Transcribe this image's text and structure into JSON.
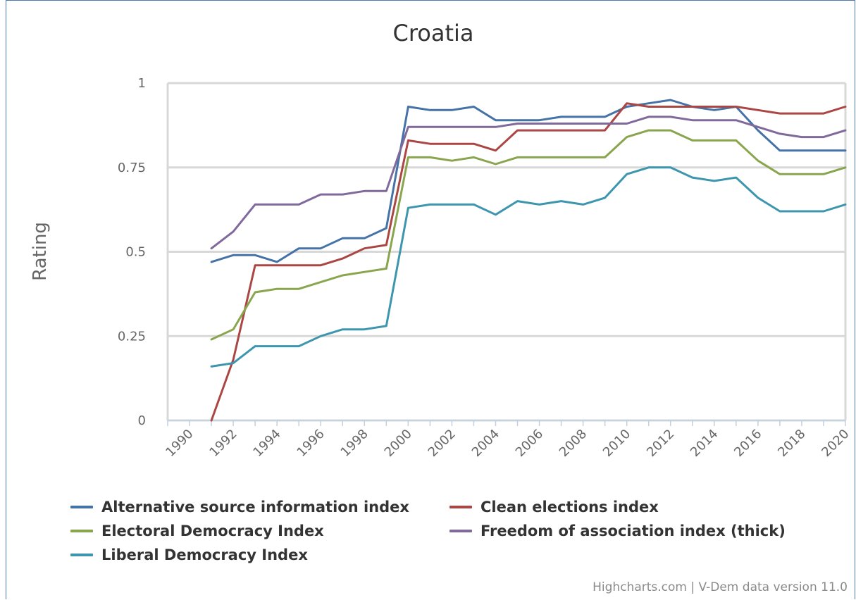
{
  "credits": "Highcharts.com | V-Dem data version 11.0",
  "chart_data": {
    "type": "line",
    "title": "Croatia",
    "ylabel": "Rating",
    "xlabel": "",
    "ylim": [
      0,
      1
    ],
    "xlim": [
      1989,
      2020
    ],
    "yticks": [
      {
        "value": 0,
        "label": "0"
      },
      {
        "value": 0.25,
        "label": "0.25"
      },
      {
        "value": 0.5,
        "label": "0.5"
      },
      {
        "value": 0.75,
        "label": "0.75"
      },
      {
        "value": 1,
        "label": "1"
      }
    ],
    "xticks": [
      "1990",
      "1992",
      "1994",
      "1996",
      "1998",
      "2000",
      "2002",
      "2004",
      "2006",
      "2008",
      "2010",
      "2012",
      "2014",
      "2016",
      "2018",
      "2020"
    ],
    "grid": true,
    "legend_position": "bottom",
    "x": [
      1991,
      1992,
      1993,
      1994,
      1995,
      1996,
      1997,
      1998,
      1999,
      2000,
      2001,
      2002,
      2003,
      2004,
      2005,
      2006,
      2007,
      2008,
      2009,
      2010,
      2011,
      2012,
      2013,
      2014,
      2015,
      2016,
      2017,
      2018,
      2019,
      2020
    ],
    "series": [
      {
        "name": "Alternative source information index",
        "color": "#4572a7",
        "values": [
          0.47,
          0.49,
          0.49,
          0.47,
          0.51,
          0.51,
          0.54,
          0.54,
          0.57,
          0.93,
          0.92,
          0.92,
          0.93,
          0.89,
          0.89,
          0.89,
          0.9,
          0.9,
          0.9,
          0.93,
          0.94,
          0.95,
          0.93,
          0.92,
          0.93,
          0.86,
          0.8,
          0.8,
          0.8,
          0.8
        ]
      },
      {
        "name": "Clean elections index",
        "color": "#aa4643",
        "values": [
          0.0,
          0.18,
          0.46,
          0.46,
          0.46,
          0.46,
          0.48,
          0.51,
          0.52,
          0.83,
          0.82,
          0.82,
          0.82,
          0.8,
          0.86,
          0.86,
          0.86,
          0.86,
          0.86,
          0.94,
          0.93,
          0.93,
          0.93,
          0.93,
          0.93,
          0.92,
          0.91,
          0.91,
          0.91,
          0.93
        ]
      },
      {
        "name": "Electoral Democracy Index",
        "color": "#89a54e",
        "values": [
          0.24,
          0.27,
          0.38,
          0.39,
          0.39,
          0.41,
          0.43,
          0.44,
          0.45,
          0.78,
          0.78,
          0.77,
          0.78,
          0.76,
          0.78,
          0.78,
          0.78,
          0.78,
          0.78,
          0.84,
          0.86,
          0.86,
          0.83,
          0.83,
          0.83,
          0.77,
          0.73,
          0.73,
          0.73,
          0.75
        ]
      },
      {
        "name": "Freedom of association index (thick)",
        "color": "#80699b",
        "values": [
          0.51,
          0.56,
          0.64,
          0.64,
          0.64,
          0.67,
          0.67,
          0.68,
          0.68,
          0.87,
          0.87,
          0.87,
          0.87,
          0.87,
          0.88,
          0.88,
          0.88,
          0.88,
          0.88,
          0.88,
          0.9,
          0.9,
          0.89,
          0.89,
          0.89,
          0.87,
          0.85,
          0.84,
          0.84,
          0.86
        ]
      },
      {
        "name": "Liberal Democracy Index",
        "color": "#3d96ae",
        "values": [
          0.16,
          0.17,
          0.22,
          0.22,
          0.22,
          0.25,
          0.27,
          0.27,
          0.28,
          0.63,
          0.64,
          0.64,
          0.64,
          0.61,
          0.65,
          0.64,
          0.65,
          0.64,
          0.66,
          0.73,
          0.75,
          0.75,
          0.72,
          0.71,
          0.72,
          0.66,
          0.62,
          0.62,
          0.62,
          0.64
        ]
      }
    ]
  }
}
